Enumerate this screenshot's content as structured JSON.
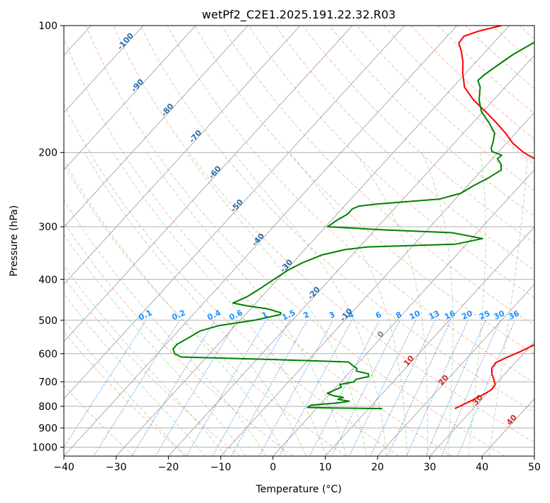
{
  "chart_data": {
    "type": "line",
    "title": "wetPf2_C2E1.2025.191.22.32.R03",
    "xlabel": "Temperature (°C)",
    "ylabel": "Pressure (hPa)",
    "xlim": [
      -40,
      50
    ],
    "ylim": [
      1050,
      100
    ],
    "y_scale": "log",
    "grid": true,
    "x_ticks": [
      -40,
      -30,
      -20,
      -10,
      0,
      10,
      20,
      30,
      40,
      50
    ],
    "y_ticks": [
      100,
      200,
      300,
      400,
      500,
      600,
      700,
      800,
      900,
      1000
    ],
    "x_tick_labels": [
      "−40",
      "−30",
      "−20",
      "−10",
      "0",
      "10",
      "20",
      "30",
      "40",
      "50"
    ],
    "y_tick_labels": [
      "100",
      "200",
      "300",
      "400",
      "500",
      "600",
      "700",
      "800",
      "900",
      "1000"
    ],
    "isotherm_labels": [
      {
        "t": -100,
        "text": "-100"
      },
      {
        "t": -90,
        "text": "-90"
      },
      {
        "t": -80,
        "text": "-80"
      },
      {
        "t": -70,
        "text": "-70"
      },
      {
        "t": -60,
        "text": "-60"
      },
      {
        "t": -50,
        "text": "-50"
      },
      {
        "t": -40,
        "text": "-40"
      },
      {
        "t": -30,
        "text": "-30"
      },
      {
        "t": -20,
        "text": "-20"
      },
      {
        "t": -10,
        "text": "-10"
      }
    ],
    "isotherm_labels_lower": [
      {
        "t": 0,
        "text": "0",
        "color": "#808080"
      },
      {
        "t": 10,
        "text": "10",
        "color": "#d62728"
      },
      {
        "t": 20,
        "text": "20",
        "color": "#d62728"
      },
      {
        "t": 30,
        "text": "30",
        "color": "#d62728"
      },
      {
        "t": 40,
        "text": "40",
        "color": "#d62728"
      }
    ],
    "mixing_ratio_labels": [
      "0.1",
      "0.2",
      "0.4",
      "0.6",
      "1",
      "1.5",
      "2",
      "3",
      "4",
      "6",
      "8",
      "10",
      "13",
      "16",
      "20",
      "25",
      "30",
      "36"
    ],
    "mixing_ratios": [
      0.1,
      0.2,
      0.4,
      0.6,
      1,
      1.5,
      2,
      3,
      4,
      6,
      8,
      10,
      13,
      16,
      20,
      25,
      30,
      36
    ],
    "series": [
      {
        "color": "#ff0000",
        "points": [
          [
            810,
            26.5
          ],
          [
            790,
            27.5
          ],
          [
            770,
            28.5
          ],
          [
            750,
            29.5
          ],
          [
            730,
            30.2
          ],
          [
            710,
            30
          ],
          [
            690,
            28.8
          ],
          [
            670,
            27.5
          ],
          [
            650,
            26.5
          ],
          [
            630,
            26.3
          ],
          [
            615,
            27.3
          ],
          [
            600,
            28.5
          ],
          [
            590,
            29.3
          ],
          [
            575,
            30.3
          ],
          [
            560,
            31.6
          ],
          [
            540,
            32.7
          ],
          [
            520,
            33.6
          ],
          [
            510,
            35.5
          ],
          [
            500,
            39.6
          ],
          [
            490,
            40
          ],
          [
            478,
            39
          ],
          [
            465,
            38.8
          ],
          [
            455,
            38.2
          ],
          [
            440,
            34.3
          ],
          [
            425,
            32.3
          ],
          [
            410,
            33.3
          ],
          [
            400,
            37.2
          ],
          [
            388,
            44
          ],
          [
            378,
            40.9
          ],
          [
            360,
            37.2
          ],
          [
            340,
            33.7
          ],
          [
            325,
            32.5
          ],
          [
            313,
            31.8
          ],
          [
            306,
            33.3
          ],
          [
            298,
            35.9
          ],
          [
            290,
            36
          ],
          [
            280,
            33.3
          ],
          [
            270,
            28.7
          ],
          [
            260,
            23.7
          ],
          [
            250,
            19.5
          ],
          [
            240,
            15.3
          ],
          [
            230,
            10.6
          ],
          [
            220,
            5
          ],
          [
            210,
            -0.5
          ],
          [
            200,
            -5.1
          ],
          [
            190,
            -8.8
          ],
          [
            180,
            -11.9
          ],
          [
            170,
            -15.5
          ],
          [
            160,
            -19.5
          ],
          [
            150,
            -23.9
          ],
          [
            140,
            -27.8
          ],
          [
            130,
            -30.5
          ],
          [
            122,
            -32.5
          ],
          [
            115,
            -34.7
          ],
          [
            110,
            -36.6
          ],
          [
            106,
            -36.8
          ],
          [
            103,
            -34.8
          ],
          [
            100,
            -31.5
          ]
        ]
      },
      {
        "color": "#008000",
        "points": [
          [
            810,
            12.6
          ],
          [
            807,
            3
          ],
          [
            805,
            -1.9
          ],
          [
            795,
            -1.6
          ],
          [
            785,
            3.3
          ],
          [
            778,
            5
          ],
          [
            770,
            2.5
          ],
          [
            762,
            3.2
          ],
          [
            755,
            1
          ],
          [
            745,
            -0.6
          ],
          [
            735,
            0.1
          ],
          [
            720,
            1
          ],
          [
            710,
            0.3
          ],
          [
            700,
            2.5
          ],
          [
            690,
            2.5
          ],
          [
            680,
            4.4
          ],
          [
            670,
            3.9
          ],
          [
            660,
            1.1
          ],
          [
            650,
            0.7
          ],
          [
            640,
            -0.6
          ],
          [
            628,
            -2
          ],
          [
            620,
            -16
          ],
          [
            611,
            -34.9
          ],
          [
            600,
            -36.7
          ],
          [
            585,
            -37.8
          ],
          [
            570,
            -37.9
          ],
          [
            550,
            -36.8
          ],
          [
            530,
            -35.8
          ],
          [
            515,
            -33.2
          ],
          [
            500,
            -27.3
          ],
          [
            485,
            -23.3
          ],
          [
            480,
            -23.5
          ],
          [
            470,
            -26.7
          ],
          [
            462,
            -31.3
          ],
          [
            455,
            -34.4
          ],
          [
            440,
            -32.8
          ],
          [
            420,
            -31.7
          ],
          [
            400,
            -30.7
          ],
          [
            380,
            -29.6
          ],
          [
            365,
            -28.1
          ],
          [
            350,
            -25.8
          ],
          [
            340,
            -22.3
          ],
          [
            335,
            -18.5
          ],
          [
            330,
            -2.1
          ],
          [
            320,
            2.1
          ],
          [
            310,
            -4.7
          ],
          [
            305,
            -18.8
          ],
          [
            300,
            -29.6
          ],
          [
            290,
            -29
          ],
          [
            280,
            -28
          ],
          [
            272,
            -28
          ],
          [
            268,
            -27.2
          ],
          [
            265,
            -24.2
          ],
          [
            258,
            -13.1
          ],
          [
            250,
            -10
          ],
          [
            240,
            -8.9
          ],
          [
            230,
            -7.4
          ],
          [
            220,
            -6.3
          ],
          [
            213,
            -7.4
          ],
          [
            207,
            -9
          ],
          [
            203,
            -8.8
          ],
          [
            199,
            -11.3
          ],
          [
            195,
            -12.1
          ],
          [
            190,
            -12.6
          ],
          [
            180,
            -14
          ],
          [
            170,
            -16.9
          ],
          [
            160,
            -20.3
          ],
          [
            150,
            -22.8
          ],
          [
            140,
            -24.8
          ],
          [
            135,
            -26.4
          ],
          [
            131,
            -26.2
          ],
          [
            125,
            -25.4
          ],
          [
            117,
            -24.2
          ],
          [
            110,
            -22.4
          ],
          [
            105,
            -20.4
          ],
          [
            100,
            -18.4
          ]
        ]
      }
    ]
  }
}
